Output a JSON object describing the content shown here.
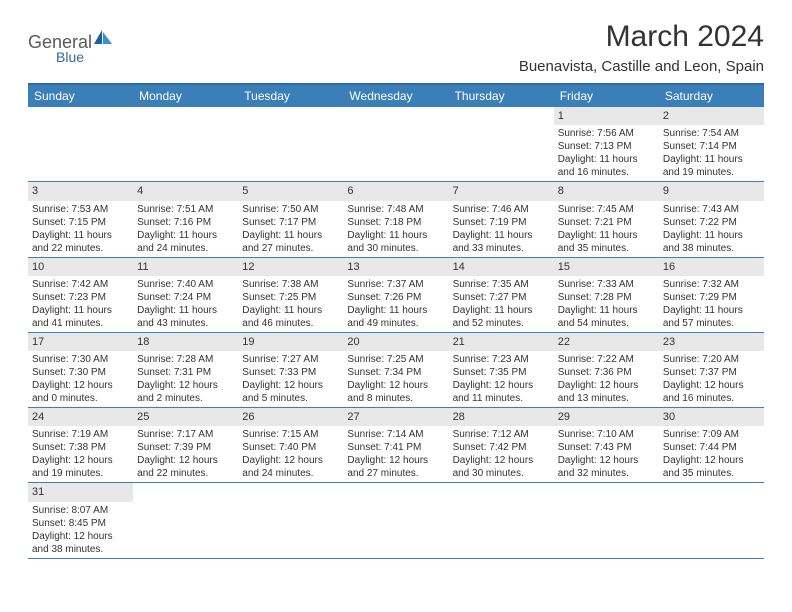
{
  "header": {
    "logo_general": "General",
    "logo_blue": "Blue",
    "month_title": "March 2024",
    "location": "Buenavista, Castille and Leon, Spain"
  },
  "colors": {
    "header_bg": "#3b7fb8",
    "header_border": "#2f6aa8",
    "daynum_bg": "#e8e8e8",
    "row_border": "#3b7fb8",
    "text": "#333333",
    "logo_gray": "#5a5a5a",
    "logo_blue": "#2f6aa8",
    "page_bg": "#ffffff"
  },
  "typography": {
    "title_fontsize": 30,
    "location_fontsize": 15,
    "header_fontsize": 12,
    "daynum_fontsize": 11,
    "body_fontsize": 10,
    "font_family": "Arial"
  },
  "calendar": {
    "type": "table",
    "columns": [
      "Sunday",
      "Monday",
      "Tuesday",
      "Wednesday",
      "Thursday",
      "Friday",
      "Saturday"
    ],
    "weeks": [
      [
        null,
        null,
        null,
        null,
        null,
        {
          "day": "1",
          "sunrise": "Sunrise: 7:56 AM",
          "sunset": "Sunset: 7:13 PM",
          "daylight": "Daylight: 11 hours and 16 minutes."
        },
        {
          "day": "2",
          "sunrise": "Sunrise: 7:54 AM",
          "sunset": "Sunset: 7:14 PM",
          "daylight": "Daylight: 11 hours and 19 minutes."
        }
      ],
      [
        {
          "day": "3",
          "sunrise": "Sunrise: 7:53 AM",
          "sunset": "Sunset: 7:15 PM",
          "daylight": "Daylight: 11 hours and 22 minutes."
        },
        {
          "day": "4",
          "sunrise": "Sunrise: 7:51 AM",
          "sunset": "Sunset: 7:16 PM",
          "daylight": "Daylight: 11 hours and 24 minutes."
        },
        {
          "day": "5",
          "sunrise": "Sunrise: 7:50 AM",
          "sunset": "Sunset: 7:17 PM",
          "daylight": "Daylight: 11 hours and 27 minutes."
        },
        {
          "day": "6",
          "sunrise": "Sunrise: 7:48 AM",
          "sunset": "Sunset: 7:18 PM",
          "daylight": "Daylight: 11 hours and 30 minutes."
        },
        {
          "day": "7",
          "sunrise": "Sunrise: 7:46 AM",
          "sunset": "Sunset: 7:19 PM",
          "daylight": "Daylight: 11 hours and 33 minutes."
        },
        {
          "day": "8",
          "sunrise": "Sunrise: 7:45 AM",
          "sunset": "Sunset: 7:21 PM",
          "daylight": "Daylight: 11 hours and 35 minutes."
        },
        {
          "day": "9",
          "sunrise": "Sunrise: 7:43 AM",
          "sunset": "Sunset: 7:22 PM",
          "daylight": "Daylight: 11 hours and 38 minutes."
        }
      ],
      [
        {
          "day": "10",
          "sunrise": "Sunrise: 7:42 AM",
          "sunset": "Sunset: 7:23 PM",
          "daylight": "Daylight: 11 hours and 41 minutes."
        },
        {
          "day": "11",
          "sunrise": "Sunrise: 7:40 AM",
          "sunset": "Sunset: 7:24 PM",
          "daylight": "Daylight: 11 hours and 43 minutes."
        },
        {
          "day": "12",
          "sunrise": "Sunrise: 7:38 AM",
          "sunset": "Sunset: 7:25 PM",
          "daylight": "Daylight: 11 hours and 46 minutes."
        },
        {
          "day": "13",
          "sunrise": "Sunrise: 7:37 AM",
          "sunset": "Sunset: 7:26 PM",
          "daylight": "Daylight: 11 hours and 49 minutes."
        },
        {
          "day": "14",
          "sunrise": "Sunrise: 7:35 AM",
          "sunset": "Sunset: 7:27 PM",
          "daylight": "Daylight: 11 hours and 52 minutes."
        },
        {
          "day": "15",
          "sunrise": "Sunrise: 7:33 AM",
          "sunset": "Sunset: 7:28 PM",
          "daylight": "Daylight: 11 hours and 54 minutes."
        },
        {
          "day": "16",
          "sunrise": "Sunrise: 7:32 AM",
          "sunset": "Sunset: 7:29 PM",
          "daylight": "Daylight: 11 hours and 57 minutes."
        }
      ],
      [
        {
          "day": "17",
          "sunrise": "Sunrise: 7:30 AM",
          "sunset": "Sunset: 7:30 PM",
          "daylight": "Daylight: 12 hours and 0 minutes."
        },
        {
          "day": "18",
          "sunrise": "Sunrise: 7:28 AM",
          "sunset": "Sunset: 7:31 PM",
          "daylight": "Daylight: 12 hours and 2 minutes."
        },
        {
          "day": "19",
          "sunrise": "Sunrise: 7:27 AM",
          "sunset": "Sunset: 7:33 PM",
          "daylight": "Daylight: 12 hours and 5 minutes."
        },
        {
          "day": "20",
          "sunrise": "Sunrise: 7:25 AM",
          "sunset": "Sunset: 7:34 PM",
          "daylight": "Daylight: 12 hours and 8 minutes."
        },
        {
          "day": "21",
          "sunrise": "Sunrise: 7:23 AM",
          "sunset": "Sunset: 7:35 PM",
          "daylight": "Daylight: 12 hours and 11 minutes."
        },
        {
          "day": "22",
          "sunrise": "Sunrise: 7:22 AM",
          "sunset": "Sunset: 7:36 PM",
          "daylight": "Daylight: 12 hours and 13 minutes."
        },
        {
          "day": "23",
          "sunrise": "Sunrise: 7:20 AM",
          "sunset": "Sunset: 7:37 PM",
          "daylight": "Daylight: 12 hours and 16 minutes."
        }
      ],
      [
        {
          "day": "24",
          "sunrise": "Sunrise: 7:19 AM",
          "sunset": "Sunset: 7:38 PM",
          "daylight": "Daylight: 12 hours and 19 minutes."
        },
        {
          "day": "25",
          "sunrise": "Sunrise: 7:17 AM",
          "sunset": "Sunset: 7:39 PM",
          "daylight": "Daylight: 12 hours and 22 minutes."
        },
        {
          "day": "26",
          "sunrise": "Sunrise: 7:15 AM",
          "sunset": "Sunset: 7:40 PM",
          "daylight": "Daylight: 12 hours and 24 minutes."
        },
        {
          "day": "27",
          "sunrise": "Sunrise: 7:14 AM",
          "sunset": "Sunset: 7:41 PM",
          "daylight": "Daylight: 12 hours and 27 minutes."
        },
        {
          "day": "28",
          "sunrise": "Sunrise: 7:12 AM",
          "sunset": "Sunset: 7:42 PM",
          "daylight": "Daylight: 12 hours and 30 minutes."
        },
        {
          "day": "29",
          "sunrise": "Sunrise: 7:10 AM",
          "sunset": "Sunset: 7:43 PM",
          "daylight": "Daylight: 12 hours and 32 minutes."
        },
        {
          "day": "30",
          "sunrise": "Sunrise: 7:09 AM",
          "sunset": "Sunset: 7:44 PM",
          "daylight": "Daylight: 12 hours and 35 minutes."
        }
      ],
      [
        {
          "day": "31",
          "sunrise": "Sunrise: 8:07 AM",
          "sunset": "Sunset: 8:45 PM",
          "daylight": "Daylight: 12 hours and 38 minutes."
        },
        null,
        null,
        null,
        null,
        null,
        null
      ]
    ]
  }
}
